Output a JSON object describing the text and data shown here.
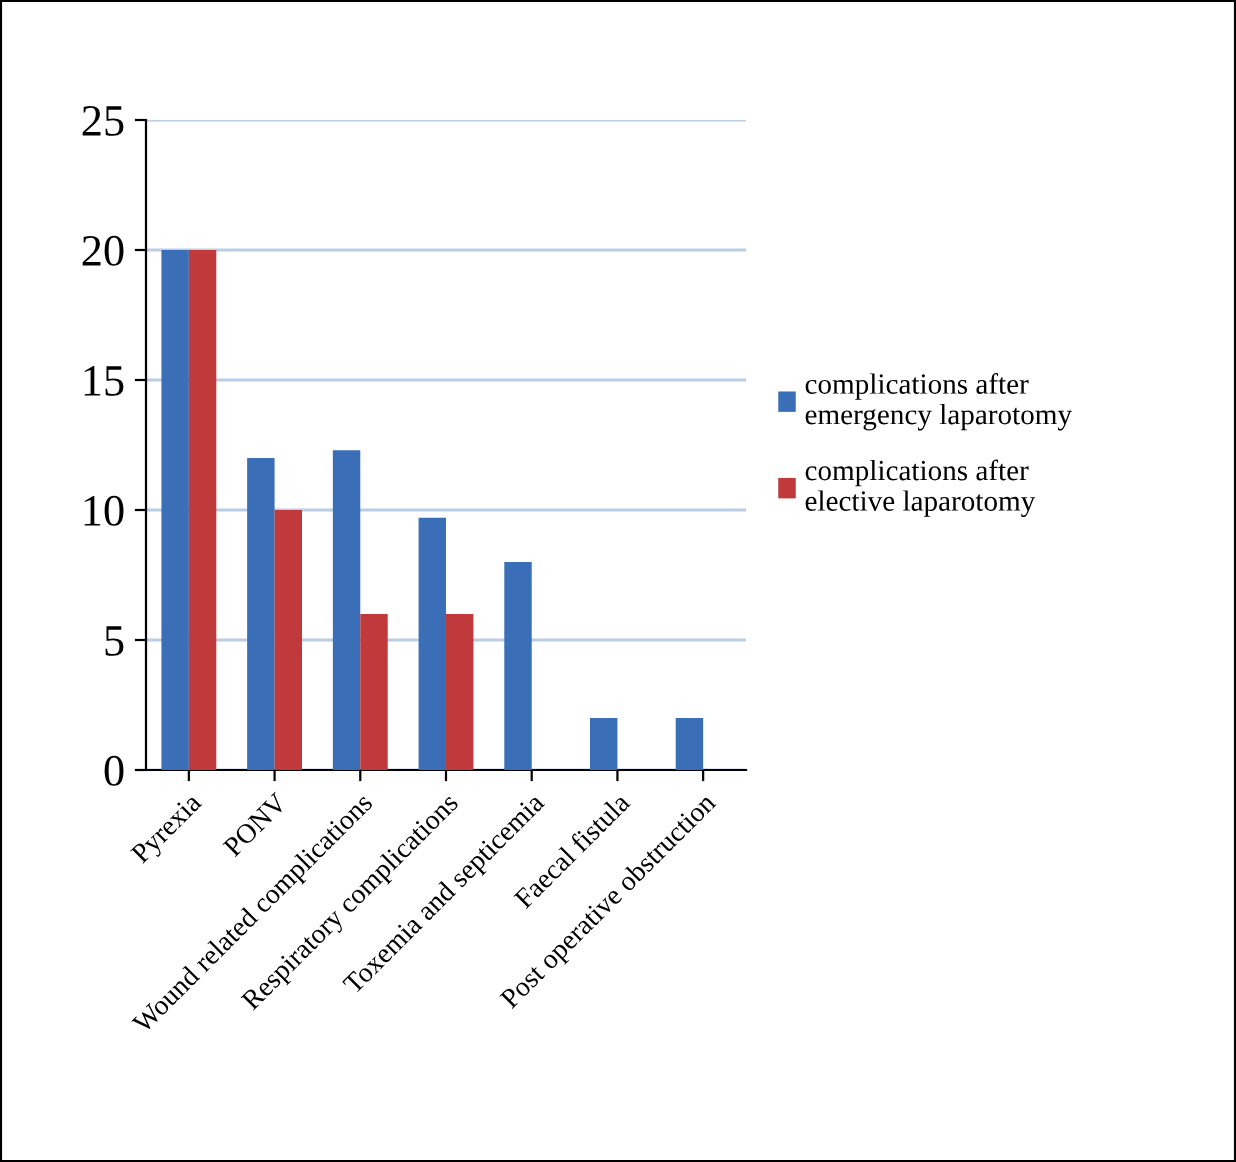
{
  "chart_data": {
    "type": "bar",
    "categories": [
      "Pyrexia",
      "PONV",
      "Wound related complications",
      "Respiratory complications",
      "Toxemia and septicemia",
      "Faecal fistula",
      "Post operative obstruction"
    ],
    "series": [
      {
        "name": "complications after emergency laparotomy",
        "color": "#3a6fb8",
        "values": [
          20,
          12,
          12.3,
          9.7,
          8,
          2,
          2
        ]
      },
      {
        "name": "complications after elective laparotomy",
        "color": "#c0393b",
        "values": [
          20,
          10,
          6,
          6,
          null,
          null,
          null
        ]
      }
    ],
    "ylim": [
      0,
      25
    ],
    "yticks": [
      0,
      5,
      10,
      15,
      20,
      25
    ],
    "grid": "y",
    "legend": "right"
  }
}
